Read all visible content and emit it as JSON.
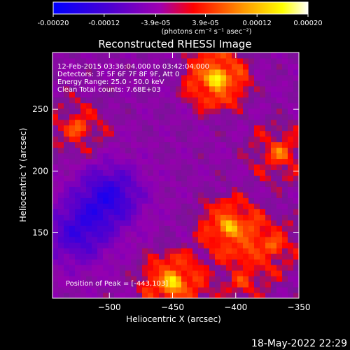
{
  "colorbar": {
    "ticks": [
      "-0.00020",
      "-0.00012",
      "-3.9e-05",
      "3.9e-05",
      "0.00012",
      "0.00020"
    ],
    "tick_values": [
      -0.0002,
      -0.00012,
      -3.9e-05,
      3.9e-05,
      0.00012,
      0.0002
    ],
    "range": [
      -0.0002,
      0.0002
    ],
    "units": "(photons cm⁻² s⁻¹ asec⁻²)",
    "colors": [
      "#0000ff",
      "#5a00c8",
      "#a000c0",
      "#ff0000",
      "#ff9600",
      "#ffff00",
      "#ffffff"
    ]
  },
  "footer": {
    "date": "18-May-2022 22:29"
  },
  "chart_data": {
    "type": "heatmap",
    "title": "Reconstructed RHESSI Image",
    "xlabel": "Heliocentric X (arcsec)",
    "ylabel": "Heliocentric Y (arcsec)",
    "xlim": [
      -545,
      -350
    ],
    "ylim": [
      97,
      296
    ],
    "xticks": [
      -500,
      -450,
      -400,
      -350
    ],
    "yticks": [
      150,
      200,
      250
    ],
    "annotations": [
      "12-Feb-2015 03:36:04.000 to 03:42:04.000",
      "Detectors: 3F 5F 6F 7F 8F 9F, Att 0",
      "Energy Range: 25.0 - 50.0 keV",
      "Clean     Total counts: 7.68E+03"
    ],
    "peak_label": "Position of Peak = [-443,103]",
    "peak": [
      -443,
      103
    ],
    "bright_sources": [
      {
        "x": -415,
        "y": 275,
        "level": 0.0002
      },
      {
        "x": -450,
        "y": 110,
        "level": 0.00018
      },
      {
        "x": -405,
        "y": 155,
        "level": 0.00016
      },
      {
        "x": -365,
        "y": 215,
        "level": 0.0001
      },
      {
        "x": -525,
        "y": 235,
        "level": 9e-05
      },
      {
        "x": -370,
        "y": 140,
        "level": 9e-05
      },
      {
        "x": -395,
        "y": 110,
        "level": 7e-05
      }
    ],
    "dim_regions": [
      {
        "x": -500,
        "y": 180,
        "level": -0.00012
      },
      {
        "x": -525,
        "y": 150,
        "level": -0.0001
      }
    ]
  }
}
